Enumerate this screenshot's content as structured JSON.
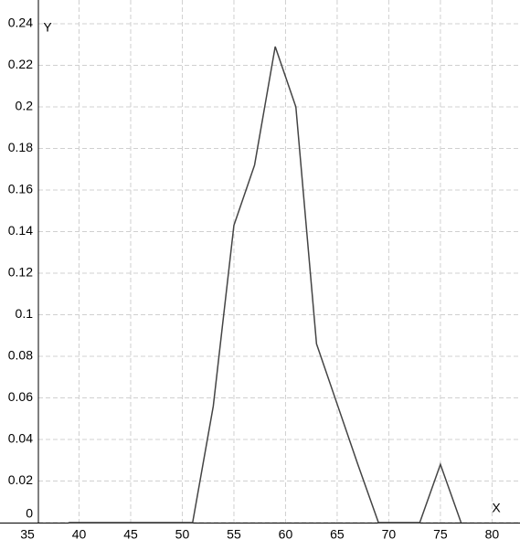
{
  "chart_data": {
    "type": "line",
    "x_label": "X",
    "y_label": "Y",
    "x": [
      39,
      41,
      43,
      45,
      47,
      49,
      51,
      53,
      55,
      57,
      59,
      61,
      63,
      65,
      67,
      69,
      71,
      73,
      75,
      77
    ],
    "series": [
      {
        "color": "#444444",
        "values": [
          0,
          0,
          0,
          0,
          0,
          0,
          0,
          0.056,
          0.143,
          0.172,
          0.229,
          0.2,
          0.086,
          0.057,
          0.028,
          0,
          0,
          0,
          0.028,
          0
        ]
      }
    ],
    "xlim": [
      35,
      82
    ],
    "xticks": [
      35,
      40,
      45,
      50,
      55,
      60,
      65,
      70,
      75,
      80
    ],
    "ylim": [
      0,
      0.245
    ],
    "yticks": [
      0,
      0.02,
      0.04,
      0.06,
      0.08,
      0.1,
      0.12,
      0.14,
      0.16,
      0.18,
      0.2,
      0.22,
      0.24
    ],
    "grid": true
  }
}
